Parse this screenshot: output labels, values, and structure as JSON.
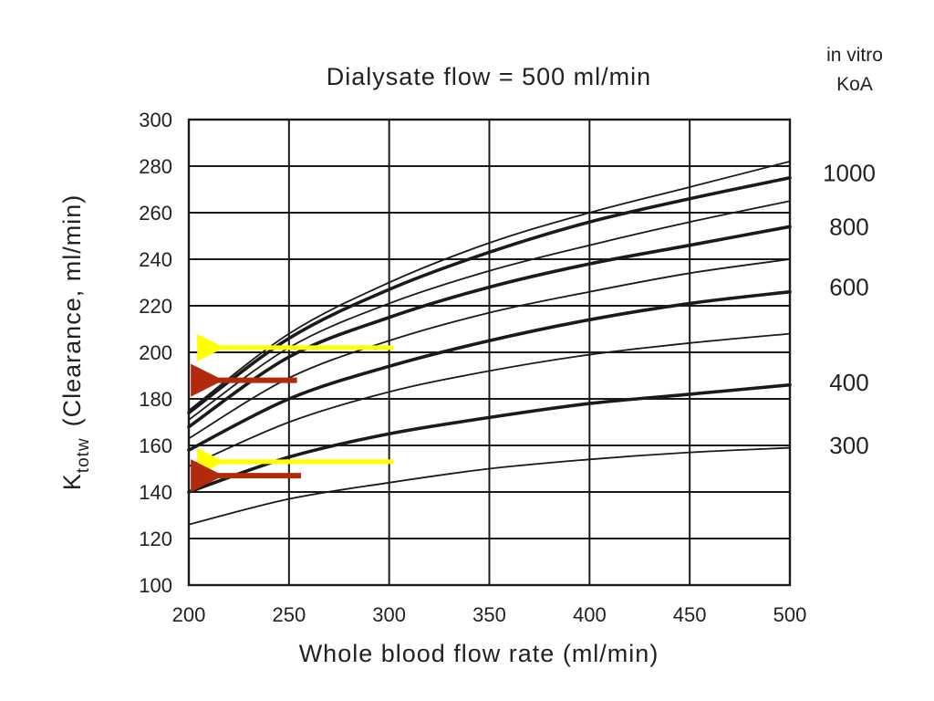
{
  "chart_data": {
    "type": "line",
    "title": "Dialysate flow = 500 ml/min",
    "xlabel": "Whole blood flow rate (ml/min)",
    "ylabel_main": "K",
    "ylabel_sub": "totw",
    "ylabel_rest": "(Clearance, ml/min)",
    "xlim": [
      200,
      500
    ],
    "ylim": [
      100,
      300
    ],
    "xticks": [
      200,
      250,
      300,
      350,
      400,
      450,
      500
    ],
    "yticks": [
      100,
      120,
      140,
      160,
      180,
      200,
      220,
      240,
      260,
      280,
      300
    ],
    "grid": true,
    "right_header_line1": "in vitro",
    "right_header_line2": "KoA",
    "x": [
      200,
      250,
      300,
      350,
      400,
      450,
      500
    ],
    "series": [
      {
        "name": "1000",
        "values": [
          174,
          206,
          227,
          243,
          256,
          266,
          275
        ],
        "weight": "bold",
        "label_y": 277
      },
      {
        "name": "",
        "values": [
          175,
          208,
          230,
          247,
          260,
          271,
          282
        ],
        "weight": "thin"
      },
      {
        "name": "",
        "values": [
          171,
          202,
          221,
          235,
          246,
          256,
          265
        ],
        "weight": "thin"
      },
      {
        "name": "800",
        "values": [
          168,
          198,
          215,
          228,
          238,
          246,
          254
        ],
        "weight": "bold",
        "label_y": 254
      },
      {
        "name": "",
        "values": [
          163,
          189,
          205,
          217,
          226,
          234,
          240
        ],
        "weight": "thin"
      },
      {
        "name": "600",
        "values": [
          158,
          180,
          194,
          205,
          214,
          221,
          226
        ],
        "weight": "bold",
        "label_y": 228
      },
      {
        "name": "",
        "values": [
          151,
          170,
          183,
          192,
          199,
          204,
          208
        ],
        "weight": "thin"
      },
      {
        "name": "400",
        "values": [
          140,
          155,
          165,
          172,
          178,
          182,
          186
        ],
        "weight": "bold",
        "label_y": 187
      },
      {
        "name": "300",
        "values": [
          126,
          137,
          144,
          150,
          154,
          157,
          159
        ],
        "weight": "thin",
        "label_y": 160
      }
    ],
    "annotations": [
      {
        "type": "arrow",
        "color": "#ffff00",
        "from": [
          302,
          202
        ],
        "to": [
          211,
          202
        ]
      },
      {
        "type": "arrow",
        "color": "#b22a0e",
        "from": [
          254,
          188
        ],
        "to": [
          211,
          188
        ]
      },
      {
        "type": "arrow",
        "color": "#ffff00",
        "from": [
          302,
          153
        ],
        "to": [
          211,
          153
        ]
      },
      {
        "type": "arrow",
        "color": "#b22a0e",
        "from": [
          256,
          147
        ],
        "to": [
          211,
          147
        ]
      }
    ]
  }
}
